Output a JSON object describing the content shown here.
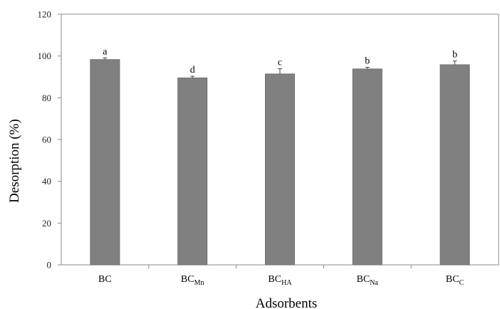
{
  "chart_data": {
    "type": "bar",
    "categories": [
      {
        "base": "BC",
        "sub": ""
      },
      {
        "base": "BC",
        "sub": "Mn"
      },
      {
        "base": "BC",
        "sub": "HA"
      },
      {
        "base": "BC",
        "sub": "Na"
      },
      {
        "base": "BC",
        "sub": "C"
      }
    ],
    "values": [
      98.3,
      89.5,
      91.4,
      93.8,
      95.8
    ],
    "errors": [
      0.8,
      0.8,
      2.5,
      0.8,
      1.8
    ],
    "significance_labels": [
      "a",
      "d",
      "c",
      "b",
      "b"
    ],
    "title": "",
    "xlabel": "Adsorbents",
    "ylabel": "Desorption (%)",
    "ylim": [
      0,
      120
    ],
    "yticks": [
      0,
      20,
      40,
      60,
      80,
      100,
      120
    ],
    "grid": false,
    "legend": "none",
    "colors": {
      "bar": "#808080",
      "bar_edge": "#6f6f6f",
      "axis": "#888888",
      "error_bar": "#444444"
    }
  }
}
